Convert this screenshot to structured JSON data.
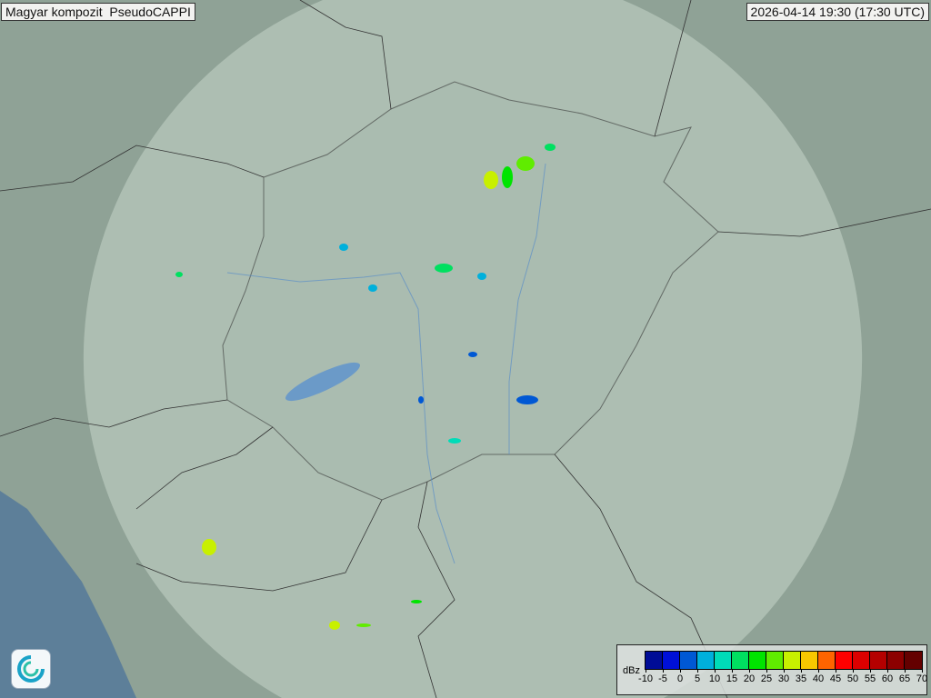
{
  "header": {
    "title": "Magyar kompozit  PseudoCAPPI",
    "timestamp": "2026-04-14 19:30 (17:30 UTC)"
  },
  "legend": {
    "unit": "dBz",
    "labels": [
      "-10",
      "-5",
      "0",
      "5",
      "10",
      "15",
      "20",
      "25",
      "30",
      "35",
      "40",
      "45",
      "50",
      "55",
      "60",
      "65",
      "70"
    ],
    "colors": [
      "#000c96",
      "#0010d8",
      "#0058d4",
      "#00b0dc",
      "#00dcb8",
      "#00e060",
      "#00e400",
      "#60ec00",
      "#c8f000",
      "#f8c800",
      "#ff6400",
      "#ff0000",
      "#dc0000",
      "#b40000",
      "#8c0000",
      "#640000"
    ]
  },
  "logo": {
    "icon": "weather-service-swirl-logo"
  },
  "colors": {
    "terrain": "#8fa296",
    "radar_coverage": "#b9c9bf",
    "sea": "#5d7f99"
  }
}
